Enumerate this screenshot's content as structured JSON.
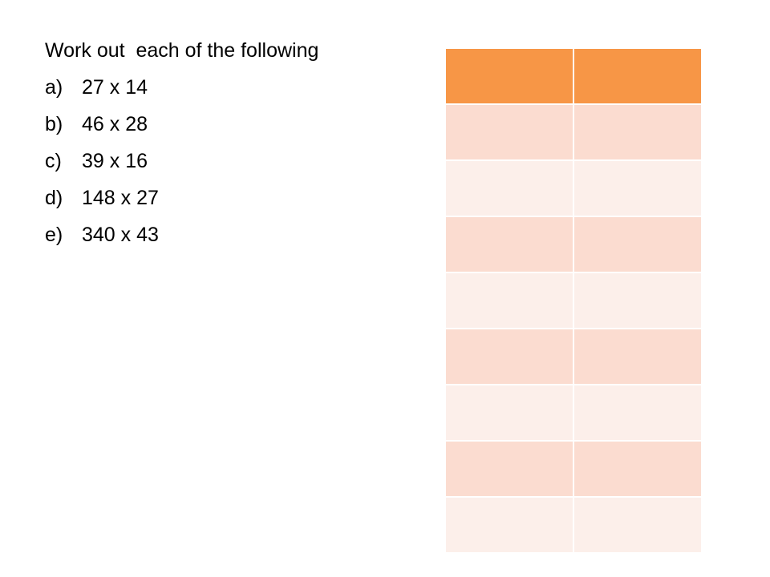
{
  "instructions": {
    "heading": "Work out  each of the following"
  },
  "problems": [
    {
      "label": "a)",
      "expression": "27 x 14"
    },
    {
      "label": "b)",
      "expression": "46 x 28"
    },
    {
      "label": "c)",
      "expression": "39 x 16"
    },
    {
      "label": "d)",
      "expression": "148 x 27"
    },
    {
      "label": "e)",
      "expression": "340 x 43"
    }
  ],
  "answer_grid": {
    "header_color": "#F79646",
    "band_dark_color": "#FBDCD0",
    "band_light_color": "#FCEFEA",
    "rows": 9,
    "columns": 2
  }
}
